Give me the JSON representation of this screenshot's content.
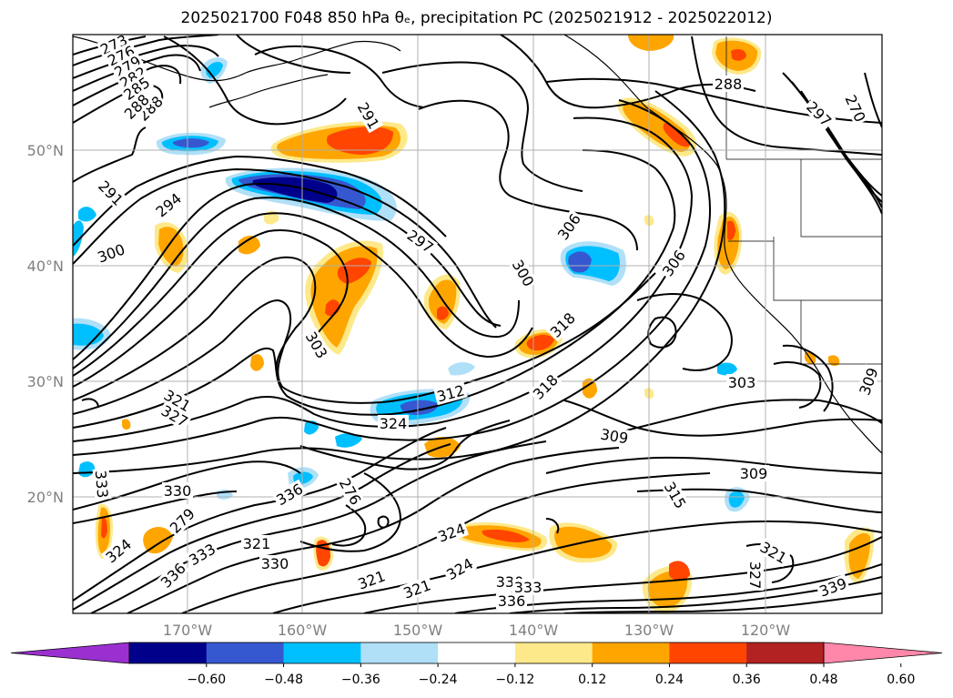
{
  "title": "2025021700 F048 850 hPa θₑ, precipitation PC (2025021912 - 2025022012)",
  "lat_labels": [
    "50°N",
    "40°N",
    "30°N",
    "20°N"
  ],
  "lon_labels": [
    "170°W",
    "160°W",
    "150°W",
    "140°W",
    "130°W",
    "120°W"
  ],
  "colorbar": {
    "ticks": [
      "−0.60",
      "−0.48",
      "−0.36",
      "−0.24",
      "−0.12",
      "0.12",
      "0.24",
      "0.36",
      "0.48",
      "0.60"
    ],
    "colors": [
      "#9b30d0",
      "#00008b",
      "#3558d0",
      "#00bfff",
      "#b0e0f8",
      "#ffffff",
      "#fde98a",
      "#ffa500",
      "#ff4500",
      "#b22222",
      "#ff88aa"
    ],
    "extend": "both"
  },
  "contour_labels": [
    "273",
    "276",
    "279",
    "282",
    "285",
    "288",
    "288",
    "288",
    "291",
    "291",
    "294",
    "297",
    "300",
    "300",
    "303",
    "303",
    "306",
    "306",
    "309",
    "309",
    "312",
    "315",
    "318",
    "318",
    "321",
    "321",
    "321",
    "321",
    "321",
    "324",
    "324",
    "324",
    "324",
    "327",
    "327",
    "330",
    "330",
    "330",
    "333",
    "333",
    "333",
    "336",
    "336",
    "336",
    "339",
    "276",
    "279",
    "270",
    "309",
    "297"
  ],
  "colors": {
    "land_outline": "#000000",
    "gridline": "#b0b0b0",
    "axis_label": "#808080"
  }
}
